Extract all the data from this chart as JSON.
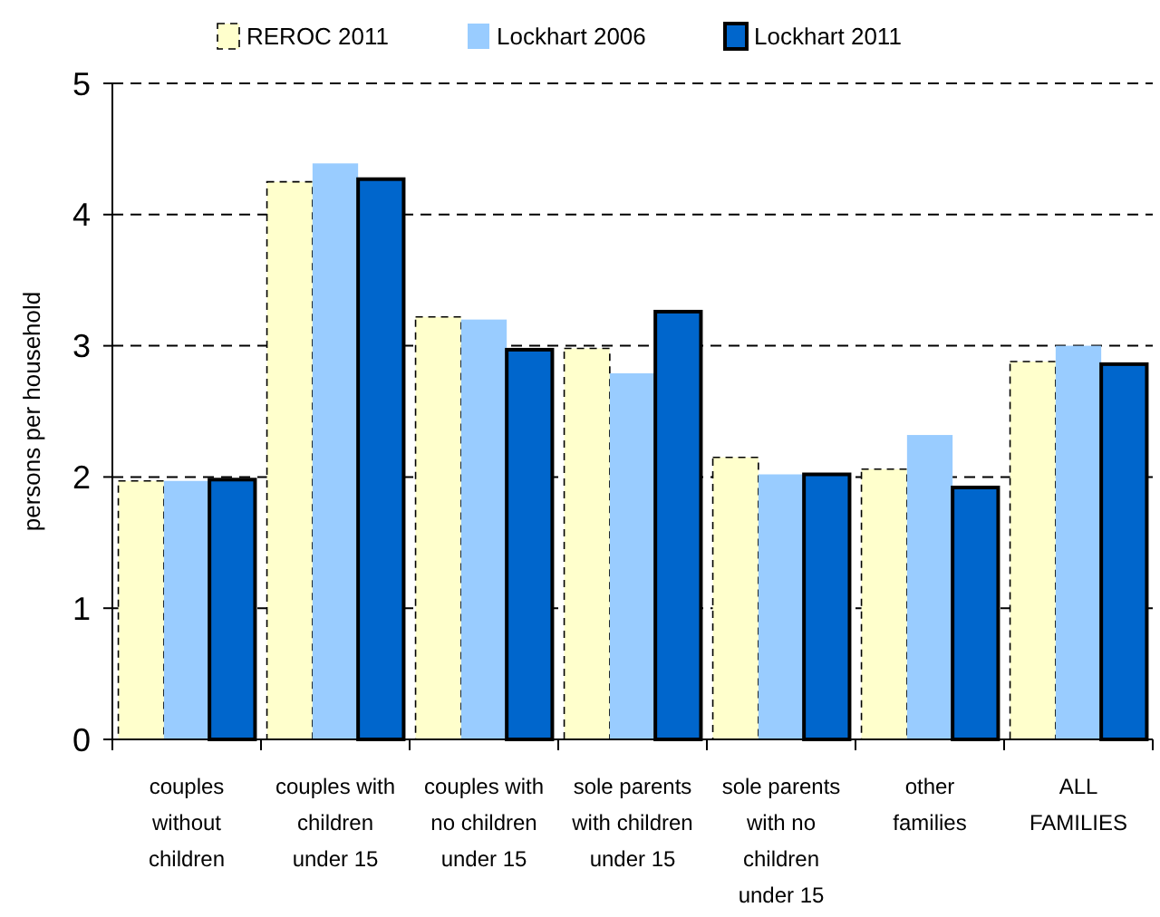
{
  "chart_data": {
    "type": "bar",
    "ylabel": "persons per household",
    "categories": [
      "couples\nwithout\nchildren",
      "couples with\nchildren\nunder 15",
      "couples with\nno children\nunder 15",
      "sole parents\nwith children\nunder 15",
      "sole parents\nwith no\nchildren\nunder 15",
      "other\nfamilies",
      "ALL\nFAMILIES"
    ],
    "series": [
      {
        "name": "REROC 2011",
        "color": "#ffffcc",
        "values": [
          1.97,
          4.25,
          3.22,
          2.98,
          2.15,
          2.06,
          2.88
        ]
      },
      {
        "name": "Lockhart 2006",
        "color": "#99ccff",
        "values": [
          1.97,
          4.39,
          3.2,
          2.79,
          2.02,
          2.32,
          3.0
        ]
      },
      {
        "name": "Lockhart 2011",
        "color": "#0066cc",
        "values": [
          1.98,
          4.27,
          2.97,
          3.26,
          2.02,
          1.92,
          2.86
        ]
      }
    ],
    "ylim": [
      0,
      5
    ],
    "yticks": [
      0,
      1,
      2,
      3,
      4,
      5
    ],
    "grid": "y",
    "legend": "top"
  }
}
